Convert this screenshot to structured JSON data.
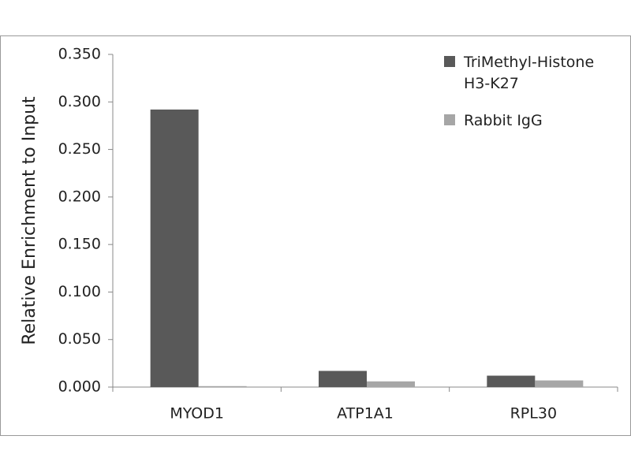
{
  "chart_data": {
    "type": "bar",
    "y_label": "Relative Enrichment to Input",
    "categories": [
      "MYOD1",
      "ATP1A1",
      "RPL30"
    ],
    "series": [
      {
        "name": "TriMethyl-Histone H3-K27",
        "color": "#595959",
        "values": [
          0.292,
          0.017,
          0.012
        ]
      },
      {
        "name": "Rabbit IgG",
        "color": "#a6a6a6",
        "values": [
          0.001,
          0.006,
          0.007
        ]
      }
    ],
    "ylim": [
      0,
      0.35
    ],
    "yticks": [
      {
        "value": 0,
        "label": "0.000"
      },
      {
        "value": 0.05,
        "label": "0.050"
      },
      {
        "value": 0.1,
        "label": "0.100"
      },
      {
        "value": 0.15,
        "label": "0.150"
      },
      {
        "value": 0.2,
        "label": "0.200"
      },
      {
        "value": 0.25,
        "label": "0.250"
      },
      {
        "value": 0.3,
        "label": "0.300"
      },
      {
        "value": 0.35,
        "label": "0.350"
      }
    ],
    "grid": false,
    "legend": "top-right"
  }
}
